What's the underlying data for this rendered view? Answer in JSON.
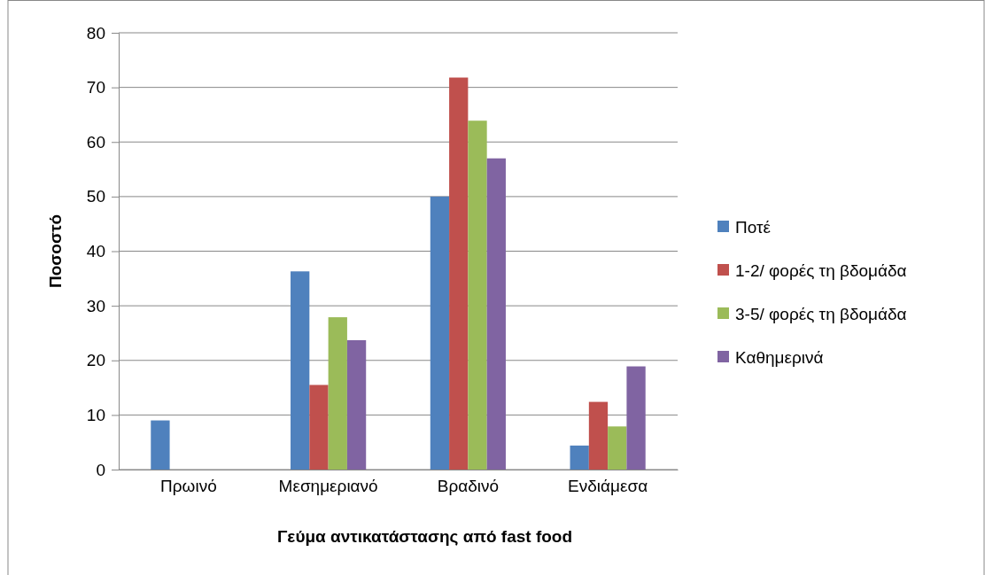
{
  "chart_data": {
    "type": "bar",
    "xlabel": "Γεύμα αντικατάστασης από fast food",
    "ylabel": "Ποσοστό",
    "categories": [
      "Πρωινό",
      "Μεσημεριανό",
      "Βραδινό",
      "Ενδιάμεσα"
    ],
    "series": [
      {
        "name": "Ποτέ",
        "color": "#4f81bd",
        "values": [
          9,
          36.3,
          50,
          4.4
        ]
      },
      {
        "name": "1-2/ φορές τη βδομάδα",
        "color": "#c0504d",
        "values": [
          0,
          15.5,
          71.8,
          12.4
        ]
      },
      {
        "name": "3-5/ φορές τη βδομάδα",
        "color": "#9bbb59",
        "values": [
          0,
          27.9,
          63.9,
          7.9
        ]
      },
      {
        "name": "Καθημερινά",
        "color": "#8064a2",
        "values": [
          0,
          23.7,
          57,
          18.9
        ]
      }
    ],
    "ylim": [
      0,
      80
    ],
    "yticks": [
      0,
      10,
      20,
      30,
      40,
      50,
      60,
      70,
      80
    ],
    "grid": "y",
    "legend": "right"
  }
}
